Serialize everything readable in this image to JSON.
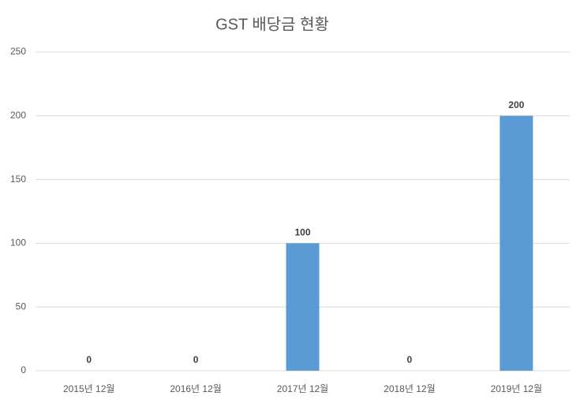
{
  "chart_data": {
    "type": "bar",
    "title": "GST 배당금 현황",
    "categories": [
      "2015년 12월",
      "2016년 12월",
      "2017년 12월",
      "2018년 12월",
      "2019년 12월"
    ],
    "values": [
      0,
      0,
      100,
      0,
      200
    ],
    "color": "#5b9bd5",
    "ylim": [
      0,
      250
    ],
    "yticks": [
      0,
      50,
      100,
      150,
      200,
      250
    ],
    "grid": true
  }
}
